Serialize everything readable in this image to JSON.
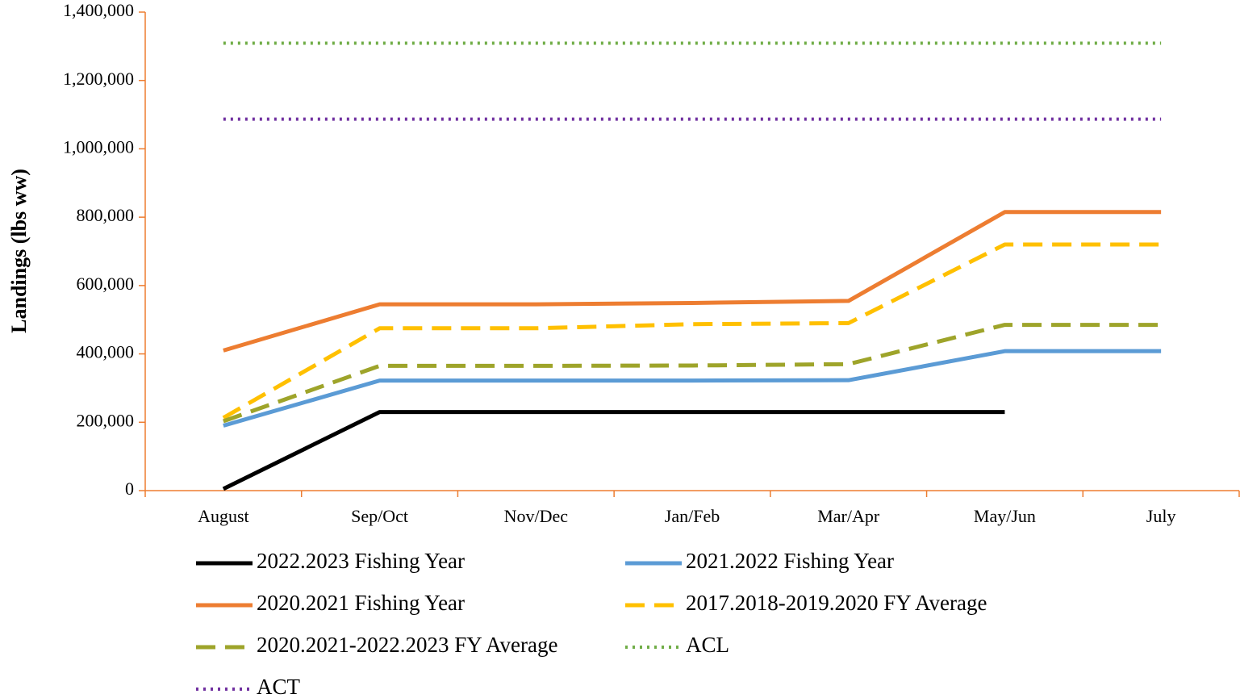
{
  "chart_data": {
    "type": "line",
    "y_label": "Landings (lbs ww)",
    "categories": [
      "August",
      "Sep/Oct",
      "Nov/Dec",
      "Jan/Feb",
      "Mar/Apr",
      "May/Jun",
      "July"
    ],
    "series": [
      {
        "name": "2022.2023 Fishing Year",
        "color": "#000000",
        "style": "solid",
        "values": [
          5000,
          230000,
          230000,
          230000,
          230000,
          230000,
          null
        ]
      },
      {
        "name": "2021.2022 Fishing Year",
        "color": "#5b9bd5",
        "style": "solid",
        "values": [
          190000,
          322000,
          322000,
          322000,
          323000,
          408000,
          408000
        ]
      },
      {
        "name": "2020.2021 Fishing Year",
        "color": "#ed7d31",
        "style": "solid",
        "values": [
          410000,
          545000,
          545000,
          549000,
          555000,
          815000,
          815000
        ]
      },
      {
        "name": "2017.2018-2019.2020 FY Average",
        "color": "#ffc000",
        "style": "dashed",
        "values": [
          213000,
          475000,
          475000,
          487000,
          490000,
          720000,
          720000
        ]
      },
      {
        "name": "2020.2021-2022.2023 FY Average",
        "color": "#9ea42a",
        "style": "dashed",
        "values": [
          203000,
          365000,
          365000,
          366000,
          370000,
          485000,
          485000
        ]
      },
      {
        "name": "ACL",
        "color": "#70ad47",
        "style": "dotted",
        "values": [
          1309000,
          1309000,
          1309000,
          1309000,
          1309000,
          1309000,
          1309000
        ]
      },
      {
        "name": "ACT",
        "color": "#7030a0",
        "style": "dotted",
        "values": [
          1087000,
          1087000,
          1087000,
          1087000,
          1087000,
          1087000,
          1087000
        ]
      }
    ],
    "ylim": [
      0,
      1400000
    ],
    "yticks": [
      0,
      {
        "value": 200000,
        "label": "200,000"
      },
      {
        "value": 400000,
        "label": "400,000"
      },
      {
        "value": 600000,
        "label": "600,000"
      },
      {
        "value": 800000,
        "label": "800,000"
      },
      {
        "value": 1000000,
        "label": "1,000,000"
      },
      {
        "value": 1200000,
        "label": "1,200,000"
      },
      {
        "value": 1400000,
        "label": "1,400,000"
      }
    ],
    "axis_color": "#ed7d31",
    "legend": "bottom"
  }
}
